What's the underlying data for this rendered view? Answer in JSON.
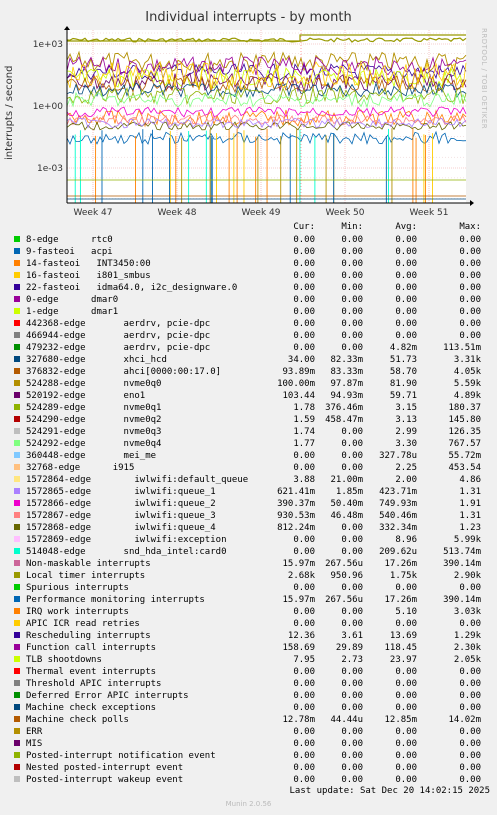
{
  "chart_data": {
    "type": "line",
    "title": "Individual interrupts - by month",
    "ylabel": "interrupts / second",
    "scale": "log",
    "yticks": [
      "1e+03",
      "1e+00",
      "1e-03"
    ],
    "xticks": [
      "Week 47",
      "Week 48",
      "Week 49",
      "Week 50",
      "Week 51"
    ],
    "grid": true,
    "side_label": "RRDTOOL / TOBI OETIKER",
    "columns": [
      "Cur:",
      "Min:",
      "Avg:",
      "Max:"
    ],
    "series": [
      {
        "name": "8-edge      rtc0",
        "color": "#00cc00",
        "values": [
          "0.00",
          "0.00",
          "0.00",
          "0.00"
        ]
      },
      {
        "name": "9-fasteoi   acpi",
        "color": "#0066b3",
        "values": [
          "0.00",
          "0.00",
          "0.00",
          "0.00"
        ]
      },
      {
        "name": "14-fasteoi   INT3450:00",
        "color": "#ff8000",
        "values": [
          "0.00",
          "0.00",
          "0.00",
          "0.00"
        ]
      },
      {
        "name": "16-fasteoi   i801_smbus",
        "color": "#ffcc00",
        "values": [
          "0.00",
          "0.00",
          "0.00",
          "0.00"
        ]
      },
      {
        "name": "22-fasteoi   idma64.0, i2c_designware.0",
        "color": "#330099",
        "values": [
          "0.00",
          "0.00",
          "0.00",
          "0.00"
        ]
      },
      {
        "name": "0-edge      dmar0",
        "color": "#990099",
        "values": [
          "0.00",
          "0.00",
          "0.00",
          "0.00"
        ]
      },
      {
        "name": "1-edge      dmar1",
        "color": "#ccff00",
        "values": [
          "0.00",
          "0.00",
          "0.00",
          "0.00"
        ]
      },
      {
        "name": "442368-edge       aerdrv, pcie-dpc",
        "color": "#ff0000",
        "values": [
          "0.00",
          "0.00",
          "0.00",
          "0.00"
        ]
      },
      {
        "name": "466944-edge       aerdrv, pcie-dpc",
        "color": "#808080",
        "values": [
          "0.00",
          "0.00",
          "0.00",
          "0.00"
        ]
      },
      {
        "name": "479232-edge       aerdrv, pcie-dpc",
        "color": "#008f00",
        "values": [
          "0.00",
          "0.00",
          "4.82m",
          "113.51m"
        ]
      },
      {
        "name": "327680-edge       xhci_hcd",
        "color": "#00487d",
        "values": [
          "34.00",
          "82.33m",
          "51.73",
          "3.31k"
        ]
      },
      {
        "name": "376832-edge       ahci[0000:00:17.0]",
        "color": "#b35a00",
        "values": [
          "93.89m",
          "83.33m",
          "58.70",
          "4.05k"
        ]
      },
      {
        "name": "524288-edge       nvme0q0",
        "color": "#b38f00",
        "values": [
          "100.00m",
          "97.87m",
          "81.90",
          "5.59k"
        ]
      },
      {
        "name": "520192-edge       eno1",
        "color": "#6b006b",
        "values": [
          "103.44",
          "94.93m",
          "59.71",
          "4.89k"
        ]
      },
      {
        "name": "524289-edge       nvme0q1",
        "color": "#8fb300",
        "values": [
          "1.78",
          "376.46m",
          "3.15",
          "180.37"
        ]
      },
      {
        "name": "524290-edge       nvme0q2",
        "color": "#b30000",
        "values": [
          "1.59",
          "458.47m",
          "3.13",
          "145.80"
        ]
      },
      {
        "name": "524291-edge       nvme0q3",
        "color": "#bebebe",
        "values": [
          "1.74",
          "0.00",
          "2.99",
          "126.35"
        ]
      },
      {
        "name": "524292-edge       nvme0q4",
        "color": "#80ff80",
        "values": [
          "1.77",
          "0.00",
          "3.30",
          "767.57"
        ]
      },
      {
        "name": "360448-edge       mei_me",
        "color": "#80c9ff",
        "values": [
          "0.00",
          "0.00",
          "327.78u",
          "55.72m"
        ]
      },
      {
        "name": "32768-edge      i915",
        "color": "#ffc080",
        "values": [
          "0.00",
          "0.00",
          "2.25",
          "453.54"
        ]
      },
      {
        "name": "1572864-edge        iwlwifi:default_queue",
        "color": "#ffe680",
        "values": [
          "3.88",
          "21.00m",
          "2.00",
          "4.86"
        ]
      },
      {
        "name": "1572865-edge        iwlwifi:queue_1",
        "color": "#aa80ff",
        "values": [
          "621.41m",
          "1.85m",
          "423.71m",
          "1.31"
        ]
      },
      {
        "name": "1572866-edge        iwlwifi:queue_2",
        "color": "#ee00cc",
        "values": [
          "390.37m",
          "50.40m",
          "749.93m",
          "1.91"
        ]
      },
      {
        "name": "1572867-edge        iwlwifi:queue_3",
        "color": "#ff8080",
        "values": [
          "930.53m",
          "46.48m",
          "540.46m",
          "1.31"
        ]
      },
      {
        "name": "1572868-edge        iwlwifi:queue_4",
        "color": "#666600",
        "values": [
          "812.24m",
          "0.00",
          "332.34m",
          "1.23"
        ]
      },
      {
        "name": "1572869-edge        iwlwifi:exception",
        "color": "#ffbfff",
        "values": [
          "0.00",
          "0.00",
          "8.96",
          "5.99k"
        ]
      },
      {
        "name": "514048-edge       snd_hda_intel:card0",
        "color": "#00ffcc",
        "values": [
          "0.00",
          "0.00",
          "209.62u",
          "513.74m"
        ]
      },
      {
        "name": "Non-maskable interrupts",
        "color": "#cc6699",
        "values": [
          "15.97m",
          "267.56u",
          "17.26m",
          "390.14m"
        ]
      },
      {
        "name": "Local timer interrupts",
        "color": "#999900",
        "values": [
          "2.68k",
          "950.96",
          "1.75k",
          "2.90k"
        ]
      },
      {
        "name": "Spurious interrupts",
        "color": "#00cc00",
        "values": [
          "0.00",
          "0.00",
          "0.00",
          "0.00"
        ]
      },
      {
        "name": "Performance monitoring interrupts",
        "color": "#0066b3",
        "values": [
          "15.97m",
          "267.56u",
          "17.26m",
          "390.14m"
        ]
      },
      {
        "name": "IRQ work interrupts",
        "color": "#ff8000",
        "values": [
          "0.00",
          "0.00",
          "5.10",
          "3.03k"
        ]
      },
      {
        "name": "APIC ICR read retries",
        "color": "#ffcc00",
        "values": [
          "0.00",
          "0.00",
          "0.00",
          "0.00"
        ]
      },
      {
        "name": "Rescheduling interrupts",
        "color": "#330099",
        "values": [
          "12.36",
          "3.61",
          "13.69",
          "1.29k"
        ]
      },
      {
        "name": "Function call interrupts",
        "color": "#990099",
        "values": [
          "158.69",
          "29.89",
          "118.45",
          "2.30k"
        ]
      },
      {
        "name": "TLB shootdowns",
        "color": "#ccff00",
        "values": [
          "7.95",
          "2.73",
          "23.97",
          "2.05k"
        ]
      },
      {
        "name": "Thermal event interrupts",
        "color": "#ff0000",
        "values": [
          "0.00",
          "0.00",
          "0.00",
          "0.00"
        ]
      },
      {
        "name": "Threshold APIC interrupts",
        "color": "#808080",
        "values": [
          "0.00",
          "0.00",
          "0.00",
          "0.00"
        ]
      },
      {
        "name": "Deferred Error APIC interrupts",
        "color": "#008f00",
        "values": [
          "0.00",
          "0.00",
          "0.00",
          "0.00"
        ]
      },
      {
        "name": "Machine check exceptions",
        "color": "#00487d",
        "values": [
          "0.00",
          "0.00",
          "0.00",
          "0.00"
        ]
      },
      {
        "name": "Machine check polls",
        "color": "#b35a00",
        "values": [
          "12.78m",
          "44.44u",
          "12.85m",
          "14.02m"
        ]
      },
      {
        "name": "ERR",
        "color": "#b38f00",
        "values": [
          "0.00",
          "0.00",
          "0.00",
          "0.00"
        ]
      },
      {
        "name": "MIS",
        "color": "#6b006b",
        "values": [
          "0.00",
          "0.00",
          "0.00",
          "0.00"
        ]
      },
      {
        "name": "Posted-interrupt notification event",
        "color": "#8fb300",
        "values": [
          "0.00",
          "0.00",
          "0.00",
          "0.00"
        ]
      },
      {
        "name": "Nested posted-interrupt event",
        "color": "#b30000",
        "values": [
          "0.00",
          "0.00",
          "0.00",
          "0.00"
        ]
      },
      {
        "name": "Posted-interrupt wakeup event",
        "color": "#bebebe",
        "values": [
          "0.00",
          "0.00",
          "0.00",
          "0.00"
        ]
      }
    ]
  },
  "footer": {
    "last_update": "Last update: Sat Dec 20 14:02:15 2025",
    "munin": "Munin 2.0.56"
  }
}
